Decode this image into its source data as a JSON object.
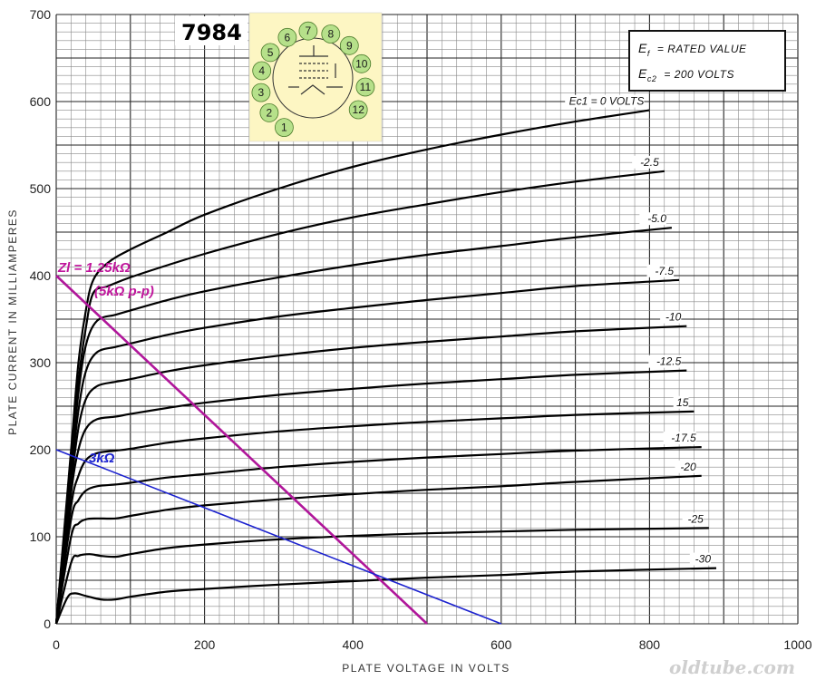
{
  "colors": {
    "background": "#ffffff",
    "grid_minor": "#8a8a8a",
    "grid_major": "#222222",
    "curve": "#000000",
    "load_line_1": "#b0169a",
    "load_line_2": "#1c22cf",
    "base_diagram_bg": "#fdf6c3",
    "pin_fill": "#b6e08a"
  },
  "tube_label": "7984",
  "legend": {
    "line1_sym": "E",
    "line1_sub": "f",
    "line1_rest": "= RATED VALUE",
    "line2_sym": "E",
    "line2_sub": "c2",
    "line2_rest": "= 200 VOLTS"
  },
  "base_diagram": {
    "pins": [
      "1",
      "2",
      "3",
      "4",
      "5",
      "6",
      "7",
      "8",
      "9",
      "10",
      "11",
      "12"
    ]
  },
  "load_labels": {
    "magenta_line1": "Zl = 1.25kΩ",
    "magenta_line2": "(5kΩ p-p)",
    "blue": "3kΩ"
  },
  "watermark": "oldtube.com",
  "chart_data": {
    "type": "line",
    "xlabel": "PLATE VOLTAGE IN VOLTS",
    "ylabel": "PLATE CURRENT IN MILLIAMPERES",
    "xlim": [
      0,
      1000
    ],
    "ylim": [
      0,
      700
    ],
    "x_ticks": [
      "0",
      "200",
      "400",
      "600",
      "800",
      "1000"
    ],
    "y_ticks": [
      "0",
      "100",
      "200",
      "300",
      "400",
      "500",
      "600",
      "700"
    ],
    "grid": true,
    "series": [
      {
        "name": "Ec1 = 0 VOLTS",
        "points": [
          [
            0,
            0
          ],
          [
            20,
            200
          ],
          [
            30,
            300
          ],
          [
            40,
            360
          ],
          [
            50,
            395
          ],
          [
            70,
            415
          ],
          [
            100,
            430
          ],
          [
            150,
            450
          ],
          [
            200,
            470
          ],
          [
            300,
            500
          ],
          [
            400,
            525
          ],
          [
            500,
            545
          ],
          [
            600,
            562
          ],
          [
            700,
            577
          ],
          [
            800,
            590
          ]
        ]
      },
      {
        "name": "-2.5",
        "points": [
          [
            0,
            0
          ],
          [
            20,
            190
          ],
          [
            30,
            280
          ],
          [
            40,
            340
          ],
          [
            50,
            380
          ],
          [
            70,
            388
          ],
          [
            100,
            398
          ],
          [
            150,
            412
          ],
          [
            200,
            425
          ],
          [
            300,
            448
          ],
          [
            400,
            467
          ],
          [
            500,
            482
          ],
          [
            600,
            496
          ],
          [
            700,
            508
          ],
          [
            820,
            520
          ]
        ]
      },
      {
        "name": "-5.0",
        "points": [
          [
            0,
            0
          ],
          [
            20,
            180
          ],
          [
            30,
            265
          ],
          [
            40,
            320
          ],
          [
            55,
            348
          ],
          [
            80,
            355
          ],
          [
            100,
            360
          ],
          [
            150,
            372
          ],
          [
            200,
            382
          ],
          [
            300,
            398
          ],
          [
            400,
            412
          ],
          [
            500,
            424
          ],
          [
            600,
            434
          ],
          [
            700,
            444
          ],
          [
            830,
            455
          ]
        ]
      },
      {
        "name": "-7.5",
        "points": [
          [
            0,
            0
          ],
          [
            20,
            170
          ],
          [
            30,
            245
          ],
          [
            40,
            290
          ],
          [
            55,
            312
          ],
          [
            80,
            318
          ],
          [
            100,
            322
          ],
          [
            150,
            332
          ],
          [
            200,
            340
          ],
          [
            300,
            353
          ],
          [
            400,
            363
          ],
          [
            500,
            372
          ],
          [
            600,
            380
          ],
          [
            700,
            388
          ],
          [
            840,
            395
          ]
        ]
      },
      {
        "name": "-10",
        "points": [
          [
            0,
            0
          ],
          [
            20,
            160
          ],
          [
            30,
            225
          ],
          [
            40,
            258
          ],
          [
            55,
            273
          ],
          [
            80,
            278
          ],
          [
            100,
            281
          ],
          [
            150,
            290
          ],
          [
            200,
            297
          ],
          [
            300,
            308
          ],
          [
            400,
            317
          ],
          [
            500,
            324
          ],
          [
            600,
            330
          ],
          [
            700,
            336
          ],
          [
            850,
            342
          ]
        ]
      },
      {
        "name": "-12.5",
        "points": [
          [
            0,
            0
          ],
          [
            20,
            150
          ],
          [
            30,
            200
          ],
          [
            40,
            224
          ],
          [
            55,
            235
          ],
          [
            80,
            238
          ],
          [
            100,
            241
          ],
          [
            150,
            248
          ],
          [
            200,
            254
          ],
          [
            300,
            263
          ],
          [
            400,
            270
          ],
          [
            500,
            276
          ],
          [
            600,
            281
          ],
          [
            700,
            286
          ],
          [
            850,
            291
          ]
        ]
      },
      {
        "name": "15",
        "points": [
          [
            0,
            0
          ],
          [
            20,
            135
          ],
          [
            30,
            170
          ],
          [
            40,
            188
          ],
          [
            55,
            196
          ],
          [
            80,
            199
          ],
          [
            100,
            201
          ],
          [
            150,
            208
          ],
          [
            200,
            213
          ],
          [
            300,
            221
          ],
          [
            400,
            227
          ],
          [
            500,
            232
          ],
          [
            600,
            236
          ],
          [
            700,
            240
          ],
          [
            860,
            244
          ]
        ]
      },
      {
        "name": "-17.5",
        "points": [
          [
            0,
            0
          ],
          [
            20,
            120
          ],
          [
            30,
            142
          ],
          [
            40,
            153
          ],
          [
            55,
            158
          ],
          [
            80,
            160
          ],
          [
            100,
            162
          ],
          [
            150,
            168
          ],
          [
            200,
            172
          ],
          [
            300,
            180
          ],
          [
            400,
            186
          ],
          [
            500,
            191
          ],
          [
            600,
            195
          ],
          [
            700,
            199
          ],
          [
            870,
            203
          ]
        ]
      },
      {
        "name": "-20",
        "points": [
          [
            0,
            0
          ],
          [
            20,
            100
          ],
          [
            30,
            115
          ],
          [
            40,
            120
          ],
          [
            55,
            121
          ],
          [
            80,
            121
          ],
          [
            100,
            124
          ],
          [
            150,
            131
          ],
          [
            200,
            136
          ],
          [
            300,
            143
          ],
          [
            400,
            149
          ],
          [
            500,
            154
          ],
          [
            600,
            158
          ],
          [
            700,
            163
          ],
          [
            870,
            170
          ]
        ]
      },
      {
        "name": "-25",
        "points": [
          [
            0,
            0
          ],
          [
            20,
            70
          ],
          [
            30,
            78
          ],
          [
            45,
            80
          ],
          [
            60,
            78
          ],
          [
            80,
            77
          ],
          [
            100,
            80
          ],
          [
            150,
            87
          ],
          [
            200,
            91
          ],
          [
            300,
            97
          ],
          [
            400,
            101
          ],
          [
            500,
            104
          ],
          [
            600,
            106
          ],
          [
            700,
            108
          ],
          [
            880,
            110
          ]
        ]
      },
      {
        "name": "-30",
        "points": [
          [
            0,
            0
          ],
          [
            15,
            30
          ],
          [
            25,
            35
          ],
          [
            40,
            32
          ],
          [
            60,
            28
          ],
          [
            80,
            28
          ],
          [
            100,
            31
          ],
          [
            150,
            37
          ],
          [
            200,
            40
          ],
          [
            300,
            45
          ],
          [
            400,
            49
          ],
          [
            500,
            53
          ],
          [
            600,
            56
          ],
          [
            700,
            60
          ],
          [
            890,
            64
          ]
        ]
      }
    ],
    "load_lines": [
      {
        "name": "Zl = 1.25kΩ (5kΩ p-p)",
        "points": [
          [
            0,
            400
          ],
          [
            500,
            0
          ]
        ]
      },
      {
        "name": "3kΩ",
        "points": [
          [
            0,
            200
          ],
          [
            600,
            0
          ]
        ]
      }
    ]
  }
}
